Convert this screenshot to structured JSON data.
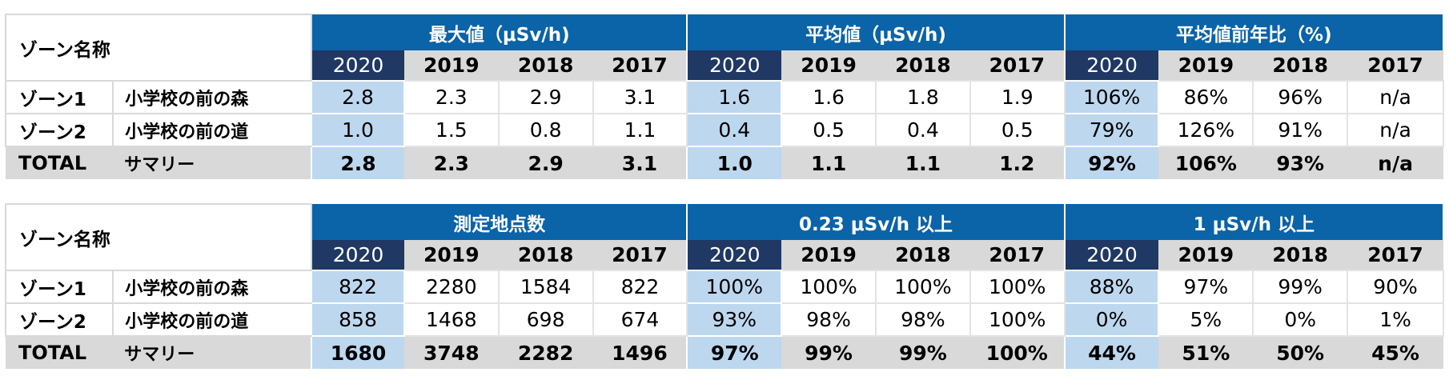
{
  "tables": [
    {
      "zone_header": "ゾーン名称",
      "groups": [
        "最大値（μSv/h)",
        "平均値（μSv/h)",
        "平均値前年比（%)"
      ],
      "years": [
        "2020",
        "2019",
        "2018",
        "2017"
      ],
      "rows": [
        {
          "zone": "ゾーン1",
          "name": "小学校の前の森",
          "values": [
            "2.8",
            "2.3",
            "2.9",
            "3.1",
            "1.6",
            "1.6",
            "1.8",
            "1.9",
            "106%",
            "86%",
            "96%",
            "n/a"
          ]
        },
        {
          "zone": "ゾーン2",
          "name": "小学校の前の道",
          "values": [
            "1.0",
            "1.5",
            "0.8",
            "1.1",
            "0.4",
            "0.5",
            "0.4",
            "0.5",
            "79%",
            "126%",
            "91%",
            "n/a"
          ]
        }
      ],
      "total": {
        "zone": "TOTAL",
        "name": "サマリー",
        "values": [
          "2.8",
          "2.3",
          "2.9",
          "3.1",
          "1.0",
          "1.1",
          "1.1",
          "1.2",
          "92%",
          "106%",
          "93%",
          "n/a"
        ]
      }
    },
    {
      "zone_header": "ゾーン名称",
      "groups": [
        "測定地点数",
        "0.23 μSv/h 以上",
        "1 μSv/h 以上"
      ],
      "years": [
        "2020",
        "2019",
        "2018",
        "2017"
      ],
      "rows": [
        {
          "zone": "ゾーン1",
          "name": "小学校の前の森",
          "values": [
            "822",
            "2280",
            "1584",
            "822",
            "100%",
            "100%",
            "100%",
            "100%",
            "88%",
            "97%",
            "99%",
            "90%"
          ]
        },
        {
          "zone": "ゾーン2",
          "name": "小学校の前の道",
          "values": [
            "858",
            "1468",
            "698",
            "674",
            "93%",
            "98%",
            "98%",
            "100%",
            "0%",
            "5%",
            "0%",
            "1%"
          ]
        }
      ],
      "total": {
        "zone": "TOTAL",
        "name": "サマリー",
        "values": [
          "1680",
          "3748",
          "2282",
          "1496",
          "97%",
          "99%",
          "99%",
          "100%",
          "44%",
          "51%",
          "50%",
          "45%"
        ]
      }
    }
  ]
}
